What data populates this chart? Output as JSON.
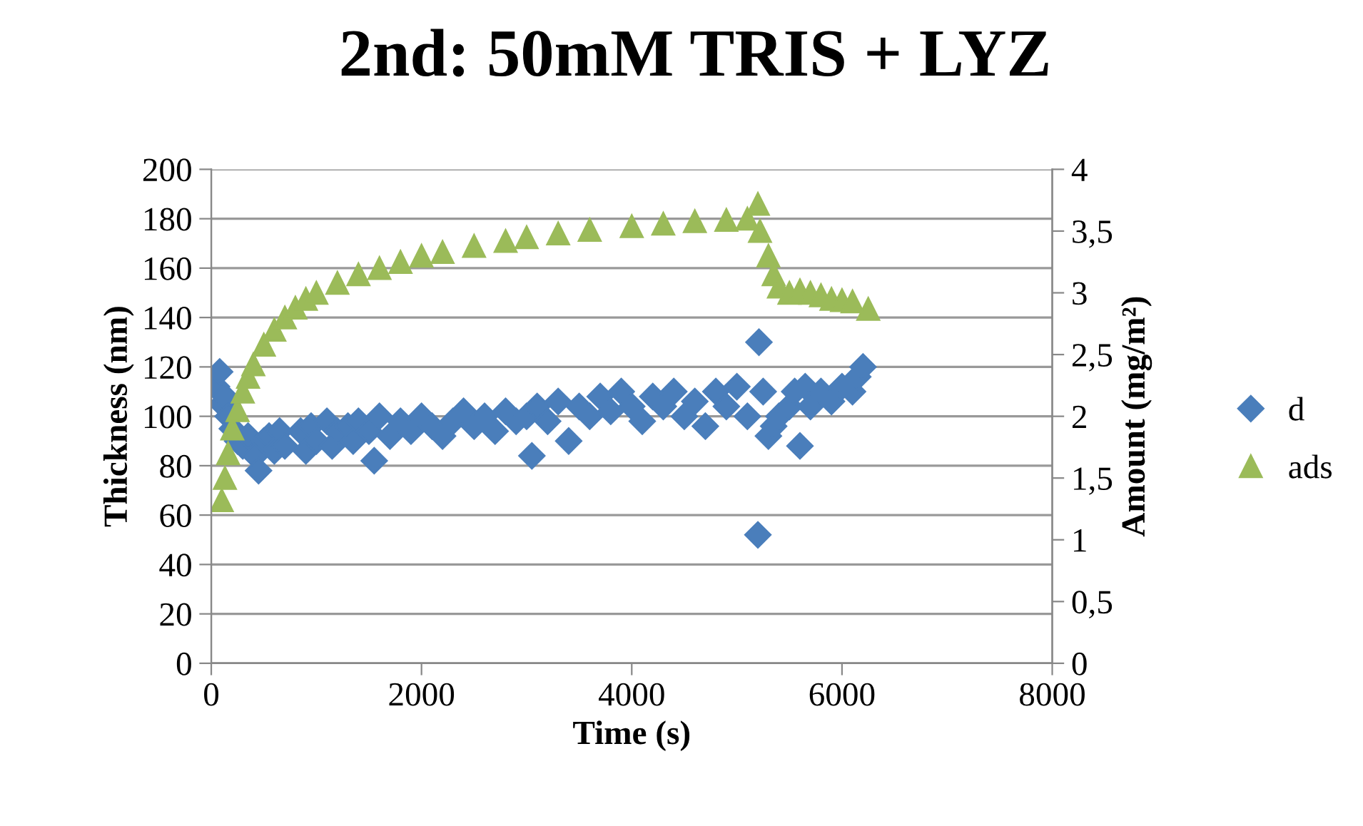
{
  "chart_data": {
    "type": "scatter",
    "title": "2nd: 50mM TRIS + LYZ",
    "xlabel": "Time (s)",
    "ylabel": "Thickness (nm)",
    "y2label": "Amount (mg/m²)",
    "xlim": [
      0,
      8000
    ],
    "xticks": [
      0,
      2000,
      4000,
      6000,
      8000
    ],
    "ylim": [
      0,
      200
    ],
    "yticks": [
      0,
      20,
      40,
      60,
      80,
      100,
      120,
      140,
      160,
      180,
      200
    ],
    "y2lim": [
      0,
      4
    ],
    "y2ticks": [
      0,
      {
        "value": 0.5,
        "label": "0,5"
      },
      1,
      {
        "value": 1.5,
        "label": "1,5"
      },
      2,
      {
        "value": 2.5,
        "label": "2,5"
      },
      3,
      {
        "value": 3.5,
        "label": "3,5"
      },
      4
    ],
    "grid": "y",
    "legend": "right",
    "series": [
      {
        "name": "d",
        "color": "#4a7ebb",
        "marker": "diamond",
        "x": [
          50,
          80,
          100,
          130,
          160,
          200,
          250,
          300,
          350,
          420,
          450,
          500,
          550,
          600,
          650,
          700,
          850,
          900,
          950,
          1000,
          1100,
          1150,
          1200,
          1300,
          1350,
          1400,
          1500,
          1550,
          1600,
          1700,
          1800,
          1900,
          2000,
          2100,
          2200,
          2300,
          2400,
          2500,
          2600,
          2700,
          2800,
          2900,
          3000,
          3050,
          3100,
          3200,
          3300,
          3400,
          3500,
          3600,
          3700,
          3800,
          3900,
          4000,
          4100,
          4200,
          4300,
          4400,
          4500,
          4600,
          4700,
          4800,
          4900,
          5000,
          5100,
          5200,
          5210,
          5250,
          5300,
          5350,
          5400,
          5500,
          5550,
          5600,
          5650,
          5700,
          5800,
          5900,
          6000,
          6100,
          6150,
          6200
        ],
        "values": [
          112,
          118,
          105,
          108,
          100,
          95,
          90,
          88,
          92,
          84,
          78,
          90,
          92,
          86,
          94,
          88,
          94,
          86,
          96,
          90,
          98,
          88,
          94,
          96,
          90,
          98,
          94,
          82,
          100,
          92,
          98,
          94,
          100,
          96,
          92,
          98,
          102,
          96,
          100,
          94,
          102,
          98,
          100,
          84,
          104,
          98,
          106,
          90,
          104,
          100,
          108,
          102,
          110,
          104,
          98,
          108,
          104,
          110,
          100,
          106,
          96,
          110,
          104,
          112,
          100,
          52,
          130,
          110,
          92,
          96,
          100,
          104,
          110,
          88,
          112,
          104,
          110,
          106,
          112,
          110,
          116,
          120
        ]
      },
      {
        "name": "ads",
        "color": "#9bbb59",
        "marker": "triangle",
        "axis": "y2",
        "x": [
          100,
          130,
          160,
          200,
          250,
          300,
          350,
          400,
          500,
          600,
          700,
          800,
          900,
          1000,
          1200,
          1400,
          1600,
          1800,
          2000,
          2200,
          2500,
          2800,
          3000,
          3300,
          3600,
          4000,
          4300,
          4600,
          4900,
          5100,
          5200,
          5220,
          5300,
          5350,
          5400,
          5500,
          5600,
          5700,
          5800,
          5900,
          6000,
          6100,
          6250
        ],
        "values": [
          1.32,
          1.5,
          1.7,
          1.9,
          2.05,
          2.2,
          2.32,
          2.42,
          2.58,
          2.7,
          2.8,
          2.88,
          2.95,
          3.0,
          3.08,
          3.15,
          3.2,
          3.25,
          3.3,
          3.33,
          3.38,
          3.42,
          3.45,
          3.48,
          3.51,
          3.54,
          3.56,
          3.58,
          3.59,
          3.6,
          3.72,
          3.5,
          3.3,
          3.15,
          3.05,
          3.0,
          3.02,
          3.0,
          2.98,
          2.95,
          2.94,
          2.93,
          2.87
        ]
      }
    ]
  }
}
